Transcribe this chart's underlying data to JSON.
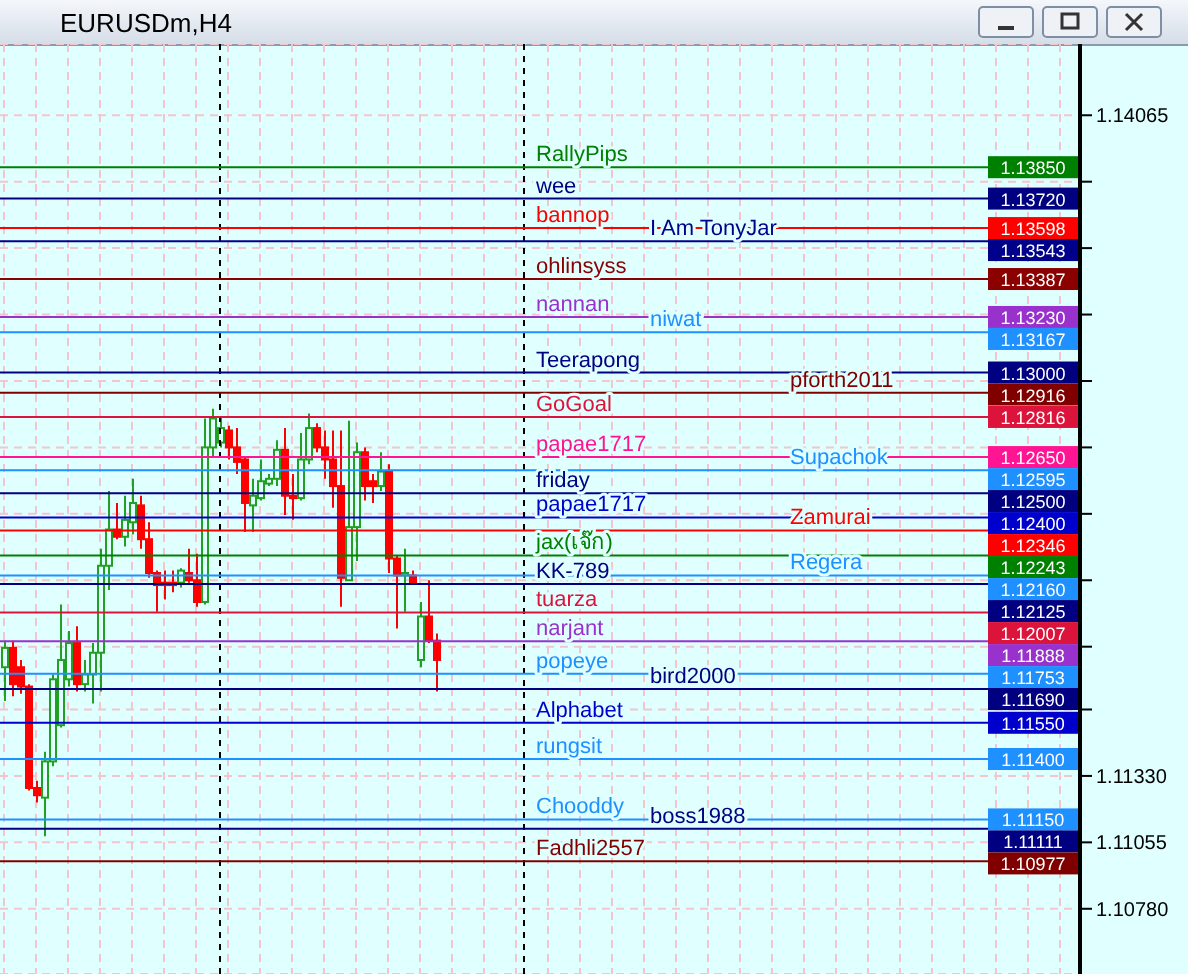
{
  "chart_data": {
    "type": "candlestick",
    "title": "EURUSDm,H4",
    "categories": [
      null,
      null,
      null,
      null,
      null,
      null,
      null,
      null,
      null,
      null,
      null,
      null,
      null,
      null,
      null,
      null,
      null,
      null,
      null,
      null,
      null,
      null,
      null,
      null,
      null,
      null,
      null,
      null,
      null,
      null,
      null,
      null,
      null,
      null,
      null,
      null,
      null,
      null,
      null,
      null,
      null,
      null,
      null,
      null,
      null,
      null,
      null,
      null,
      null,
      null,
      null,
      null,
      null,
      null,
      null,
      null,
      null,
      null,
      null,
      null,
      null,
      null,
      null,
      null,
      null,
      null,
      null,
      null,
      null,
      null,
      null,
      null,
      null,
      null,
      null,
      null,
      null,
      null,
      null,
      null,
      null,
      null,
      null,
      null,
      null,
      null,
      null,
      null,
      null,
      null,
      null,
      null,
      null,
      null,
      null,
      null,
      null,
      null,
      null,
      null,
      null,
      null,
      null,
      null,
      null,
      null,
      null,
      null,
      null,
      null,
      null,
      null,
      null,
      null,
      null,
      null,
      null,
      null,
      null,
      null,
      null,
      null,
      null,
      null,
      null,
      null,
      null,
      null,
      null,
      null,
      null,
      null,
      null,
      null,
      null
    ],
    "ohlc": [
      [
        1.1178,
        1.1189,
        1.1164,
        1.1186
      ],
      [
        1.1186,
        1.1189,
        1.1166,
        1.1171
      ],
      [
        1.1178,
        1.1181,
        1.1167,
        1.117
      ],
      [
        1.117,
        1.1171,
        1.1127,
        1.1128
      ],
      [
        1.1128,
        1.1131,
        1.1122,
        1.1125
      ],
      [
        1.1124,
        1.1143,
        1.1108,
        1.1139
      ],
      [
        1.1139,
        1.1175,
        1.1137,
        1.1173
      ],
      [
        1.1154,
        1.1204,
        1.1153,
        1.1181
      ],
      [
        1.1173,
        1.1193,
        1.117,
        1.1188
      ],
      [
        1.1188,
        1.1195,
        1.1168,
        1.1171
      ],
      [
        1.1171,
        1.1181,
        1.1168,
        1.1175
      ],
      [
        1.1175,
        1.1188,
        1.1163,
        1.1184
      ],
      [
        1.1184,
        1.1227,
        1.1168,
        1.122
      ],
      [
        1.122,
        1.1251,
        1.121,
        1.1235
      ],
      [
        1.1235,
        1.1246,
        1.1231,
        1.1232
      ],
      [
        1.1232,
        1.1249,
        1.1228,
        1.1239
      ],
      [
        1.1238,
        1.1256,
        1.1233,
        1.1246
      ],
      [
        1.1245,
        1.1249,
        1.1227,
        1.1231
      ],
      [
        1.1231,
        1.1238,
        1.1215,
        1.1217
      ],
      [
        1.1217,
        1.1218,
        1.1201,
        1.1212
      ],
      [
        1.1213,
        1.1218,
        1.1206,
        1.1212
      ],
      [
        1.1213,
        1.1218,
        1.1209,
        1.1212
      ],
      [
        1.1213,
        1.1219,
        1.1211,
        1.1218
      ],
      [
        1.1217,
        1.1227,
        1.1213,
        1.1214
      ],
      [
        1.1214,
        1.1225,
        1.1203,
        1.1205
      ],
      [
        1.1205,
        1.1281,
        1.1204,
        1.1269
      ],
      [
        1.1269,
        1.1285,
        1.1265,
        1.1281
      ],
      [
        1.1271,
        1.1282,
        1.1269,
        1.1277
      ],
      [
        1.1276,
        1.1278,
        1.1264,
        1.1269
      ],
      [
        1.1269,
        1.1277,
        1.1258,
        1.1263
      ],
      [
        1.1264,
        1.1265,
        1.1234,
        1.1246
      ],
      [
        1.1245,
        1.1256,
        1.1234,
        1.1249
      ],
      [
        1.1248,
        1.1264,
        1.1247,
        1.1255
      ],
      [
        1.1254,
        1.1258,
        1.1253,
        1.1256
      ],
      [
        1.1256,
        1.1272,
        1.1253,
        1.1268
      ],
      [
        1.1268,
        1.1277,
        1.1241,
        1.1249
      ],
      [
        1.1249,
        1.1258,
        1.1239,
        1.1248
      ],
      [
        1.1248,
        1.1275,
        1.1247,
        1.1264
      ],
      [
        1.1264,
        1.1283,
        1.1262,
        1.1277
      ],
      [
        1.1277,
        1.1279,
        1.1267,
        1.1269
      ],
      [
        1.1269,
        1.1276,
        1.1256,
        1.1264
      ],
      [
        1.1264,
        1.1276,
        1.1244,
        1.1253
      ],
      [
        1.1253,
        1.1276,
        1.1203,
        1.1215
      ],
      [
        1.1214,
        1.128,
        1.1214,
        1.1236
      ],
      [
        1.1236,
        1.1271,
        1.1222,
        1.1267
      ],
      [
        1.1267,
        1.1269,
        1.1247,
        1.1253
      ],
      [
        1.1255,
        1.1258,
        1.1246,
        1.1253
      ],
      [
        1.1253,
        1.1267,
        1.1251,
        1.1259
      ],
      [
        1.1259,
        1.1262,
        1.1217,
        1.1223
      ],
      [
        1.1223,
        1.1224,
        1.1194,
        1.1216
      ],
      [
        1.1216,
        1.1227,
        1.1201,
        1.1217
      ],
      [
        1.1216,
        1.1218,
        1.1213,
        1.1213
      ],
      [
        1.1181,
        1.1205,
        1.1178,
        1.1199
      ],
      [
        1.1199,
        1.1214,
        1.1188,
        1.1189
      ],
      [
        1.1189,
        1.1192,
        1.1168,
        1.1181
      ],
      null,
      null,
      null,
      null,
      null,
      null,
      null,
      null,
      null,
      null,
      null,
      null,
      null,
      null,
      null,
      null,
      null,
      null,
      null,
      null,
      null,
      null,
      null,
      null,
      null,
      null,
      null,
      null,
      null,
      null,
      null,
      null,
      null,
      null,
      null,
      null,
      null,
      null,
      null,
      null,
      null,
      null,
      null,
      null,
      null,
      null,
      null,
      null,
      null,
      null,
      null,
      null,
      null,
      null,
      null,
      null,
      null,
      null,
      null,
      null,
      null,
      null,
      null,
      null,
      null,
      null,
      null,
      null,
      null,
      null,
      null,
      null,
      null,
      null,
      null,
      null,
      null,
      null,
      null,
      null
    ],
    "ylim": [
      1.1051,
      1.1436
    ],
    "yticks": [
      1.14065,
      {
        "value": 1.1379,
        "label": null
      },
      {
        "value": 1.13515,
        "label": null
      },
      {
        "value": 1.1324,
        "label": null
      },
      {
        "value": 1.12965,
        "label": null
      },
      {
        "value": 1.1269,
        "label": null
      },
      {
        "value": 1.12415,
        "label": null
      },
      {
        "value": 1.1214,
        "label": null
      },
      {
        "value": 1.11865,
        "label": null
      },
      {
        "value": 1.11605,
        "label": null
      },
      {
        "value": 1.1133,
        "label": "1.11330"
      },
      1.11055,
      {
        "value": 1.1078,
        "label": "1.10780"
      }
    ],
    "annotations": [
      {
        "text": "1.13850",
        "y": 1.1385
      },
      {
        "text": "1.13720",
        "y": 1.1372
      },
      {
        "text": "1.13598",
        "y": 1.13598
      },
      {
        "text": "1.13543",
        "y": 1.13543
      },
      {
        "text": "1.13387",
        "y": 1.13387
      },
      {
        "text": "1.13230",
        "y": 1.1323
      },
      {
        "text": "1.13167",
        "y": 1.13167
      },
      {
        "text": "1.13000",
        "y": 1.13
      },
      {
        "text": "1.12916",
        "y": 1.12916
      },
      {
        "text": "1.12816",
        "y": 1.12816
      },
      {
        "text": "1.12650",
        "y": 1.1265
      },
      {
        "text": "1.12595",
        "y": 1.12595
      },
      {
        "text": "1.12500",
        "y": 1.125
      },
      {
        "text": "1.12400",
        "y": 1.124
      },
      {
        "text": "1.12346",
        "y": 1.12346
      },
      {
        "text": "1.12243",
        "y": 1.12243
      },
      {
        "text": "1.12160",
        "y": 1.1216
      },
      {
        "text": "1.12125",
        "y": 1.12125
      },
      {
        "text": "1.12007",
        "y": 1.12007
      },
      {
        "text": "1.11888",
        "y": 1.11888
      },
      {
        "text": "1.11753",
        "y": 1.11753
      },
      {
        "text": "1.11690",
        "y": 1.1169
      },
      {
        "text": "1.11550",
        "y": 1.1155
      },
      {
        "text": "1.11400",
        "y": 1.114
      },
      {
        "text": "1.11150",
        "y": 1.1115
      },
      {
        "text": "1.11111",
        "y": 1.11111
      },
      {
        "text": "1.10977",
        "y": 1.10977
      }
    ],
    "grid": true,
    "tick_labels": "y",
    "ref_lines": [
      {
        "axis": "y",
        "value": 1.1385,
        "label": "RallyPips",
        "color": "#008000"
      },
      {
        "axis": "y",
        "value": 1.1372,
        "label": "wee",
        "color": "#000080"
      },
      {
        "axis": "y",
        "value": 1.13598,
        "label": "bannop",
        "color": "#ff0000"
      },
      {
        "axis": "y",
        "value": 1.13543,
        "label": "I Am TonyJar",
        "color": "#00008b"
      },
      {
        "axis": "y",
        "value": 1.13387,
        "label": "ohlinsyss",
        "color": "#8b0000"
      },
      {
        "axis": "y",
        "value": 1.1323,
        "label": "nannan",
        "color": "#9932cc"
      },
      {
        "axis": "y",
        "value": 1.13167,
        "label": "niwat",
        "color": "#1e90ff"
      },
      {
        "axis": "y",
        "value": 1.13,
        "label": "Teerapong",
        "color": "#000080"
      },
      {
        "axis": "y",
        "value": 1.12916,
        "label": "pforth2011",
        "color": "#800000"
      },
      {
        "axis": "y",
        "value": 1.12816,
        "label": "GoGoal",
        "color": "#dc143c"
      },
      {
        "axis": "y",
        "value": 1.1265,
        "label": "papae1717",
        "color": "#ff1493"
      },
      {
        "axis": "y",
        "value": 1.12595,
        "label": "Supachok",
        "color": "#1e90ff"
      },
      {
        "axis": "y",
        "value": 1.125,
        "label": "friday",
        "color": "#000080"
      },
      {
        "axis": "y",
        "value": 1.124,
        "label": "papae1717",
        "color": "#0000cd"
      },
      {
        "axis": "y",
        "value": 1.12346,
        "label": "Zamurai",
        "color": "#ff0000"
      },
      {
        "axis": "y",
        "value": 1.12243,
        "label": "jax(เจ๊ก)",
        "color": "#008000"
      },
      {
        "axis": "y",
        "value": 1.1216,
        "label": "Regera",
        "color": "#1e90ff"
      },
      {
        "axis": "y",
        "value": 1.12125,
        "label": "KK-789",
        "color": "#000080"
      },
      {
        "axis": "y",
        "value": 1.12007,
        "label": "tuarza",
        "color": "#dc143c"
      },
      {
        "axis": "y",
        "value": 1.11888,
        "label": "narjant",
        "color": "#9932cc"
      },
      {
        "axis": "y",
        "value": 1.11753,
        "label": "popeye",
        "color": "#1e90ff"
      },
      {
        "axis": "y",
        "value": 1.1169,
        "label": "bird2000",
        "color": "#000080"
      },
      {
        "axis": "y",
        "value": 1.1155,
        "label": "Alphabet",
        "color": "#0000cd"
      },
      {
        "axis": "y",
        "value": 1.114,
        "label": "rungsit",
        "color": "#1e90ff"
      },
      {
        "axis": "y",
        "value": 1.1115,
        "label": "Chooddy",
        "color": "#1e90ff"
      },
      {
        "axis": "y",
        "value": 1.11111,
        "label": "boss1988",
        "color": "#000080"
      },
      {
        "axis": "y",
        "value": 1.10977,
        "label": "Fadhli2557",
        "color": "#800000"
      }
    ]
  }
}
